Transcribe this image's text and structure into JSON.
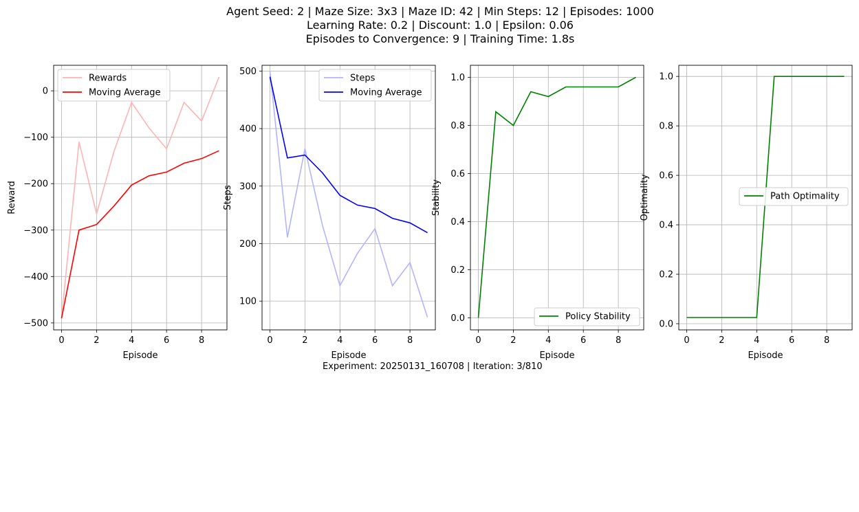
{
  "figure": {
    "title_lines": [
      "Agent Seed: 2 | Maze Size: 3x3 | Maze ID: 42 | Min Steps: 12 | Episodes: 1000",
      "Learning Rate: 0.2 | Discount: 1.0 | Epsilon: 0.06",
      "Episodes to Convergence: 9 | Training Time: 1.8s"
    ],
    "footer": "Experiment: 20250131_160708 | Iteration: 3/810"
  },
  "chart_data": [
    {
      "type": "line",
      "xlabel": "Episode",
      "ylabel": "Reward",
      "xlim": [
        -0.45,
        9.45
      ],
      "ylim": [
        -515,
        55
      ],
      "xticks": [
        0,
        2,
        4,
        6,
        8
      ],
      "yticks": [
        -500,
        -400,
        -300,
        -200,
        -100,
        0
      ],
      "grid": true,
      "legend": "upper left",
      "x": [
        0,
        1,
        2,
        3,
        4,
        5,
        6,
        7,
        8,
        9
      ],
      "series": [
        {
          "name": "Rewards",
          "color": "#ffb3b3",
          "values": [
            -490,
            -110,
            -265,
            -130,
            -25,
            -80,
            -125,
            -25,
            -65,
            30
          ]
        },
        {
          "name": "Moving Average",
          "color": "#ff0000",
          "values": [
            -490,
            -300,
            -288,
            -248,
            -203,
            -183,
            -175,
            -156,
            -146,
            -129
          ]
        }
      ]
    },
    {
      "type": "line",
      "xlabel": "Episode",
      "ylabel": "Steps",
      "xlim": [
        -0.45,
        9.45
      ],
      "ylim": [
        50,
        510
      ],
      "xticks": [
        0,
        2,
        4,
        6,
        8
      ],
      "yticks": [
        100,
        200,
        300,
        400,
        500
      ],
      "grid": true,
      "legend": "upper right",
      "x": [
        0,
        1,
        2,
        3,
        4,
        5,
        6,
        7,
        8,
        9
      ],
      "series": [
        {
          "name": "Steps",
          "color": "#b3b3ff",
          "values": [
            500,
            211,
            365,
            232,
            127,
            183,
            226,
            127,
            167,
            72
          ]
        },
        {
          "name": "Moving Average",
          "color": "#0000ff",
          "values": [
            490,
            349,
            354,
            323,
            284,
            267,
            261,
            244,
            236,
            219
          ]
        }
      ]
    },
    {
      "type": "line",
      "xlabel": "Episode",
      "ylabel": "Stability",
      "xlim": [
        -0.45,
        9.45
      ],
      "ylim": [
        -0.05,
        1.05
      ],
      "xticks": [
        0,
        2,
        4,
        6,
        8
      ],
      "yticks": [
        0.0,
        0.2,
        0.4,
        0.6,
        0.8,
        1.0
      ],
      "grid": true,
      "legend": "lower right",
      "x": [
        0,
        1,
        2,
        3,
        4,
        5,
        6,
        7,
        8,
        9
      ],
      "series": [
        {
          "name": "Policy Stability",
          "color": "#008000",
          "values": [
            0.0,
            0.857,
            0.8,
            0.94,
            0.92,
            0.96,
            0.96,
            0.96,
            0.96,
            1.0
          ]
        }
      ]
    },
    {
      "type": "line",
      "xlabel": "Episode",
      "ylabel": "Optimality",
      "xlim": [
        -0.45,
        9.45
      ],
      "ylim": [
        -0.025,
        1.045
      ],
      "xticks": [
        0,
        2,
        4,
        6,
        8
      ],
      "yticks": [
        0.0,
        0.2,
        0.4,
        0.6,
        0.8,
        1.0
      ],
      "grid": true,
      "legend": "center right",
      "x": [
        0,
        1,
        2,
        3,
        4,
        5,
        6,
        7,
        8,
        9
      ],
      "series": [
        {
          "name": "Path Optimality",
          "color": "#008000",
          "values": [
            0.025,
            0.025,
            0.025,
            0.025,
            0.025,
            1.0,
            1.0,
            1.0,
            1.0,
            1.0
          ]
        }
      ]
    }
  ]
}
